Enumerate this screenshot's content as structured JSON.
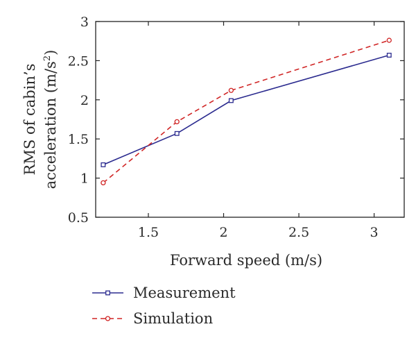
{
  "chart_data": {
    "type": "line",
    "xlabel": "Forward speed (m/s)",
    "ylabel_line1": "RMS of cabin’s",
    "ylabel_line2_prefix": "acceleration (m/s",
    "ylabel_line2_sup": "2",
    "ylabel_line2_suffix": ")",
    "xlim": [
      1.15,
      3.2
    ],
    "ylim": [
      0.5,
      3
    ],
    "xticks": [
      1.5,
      2,
      2.5,
      3
    ],
    "xtick_labels": [
      "1.5",
      "2",
      "2.5",
      "3"
    ],
    "yticks": [
      0.5,
      1,
      1.5,
      2,
      2.5,
      3
    ],
    "ytick_labels": [
      "0.5",
      "1",
      "1.5",
      "2",
      "2.5",
      "3"
    ],
    "grid": false,
    "legend_position": "bottom-left, below plot",
    "series": [
      {
        "name": "Measurement",
        "color": "#2b2b8f",
        "dash": "solid",
        "marker": "square",
        "x": [
          1.2,
          1.69,
          2.05,
          3.1
        ],
        "y": [
          1.17,
          1.57,
          1.99,
          2.57
        ]
      },
      {
        "name": "Simulation",
        "color": "#d02424",
        "dash": "dashed",
        "marker": "circle",
        "x": [
          1.2,
          1.69,
          2.05,
          3.1
        ],
        "y": [
          0.94,
          1.72,
          2.12,
          2.76
        ]
      }
    ]
  }
}
